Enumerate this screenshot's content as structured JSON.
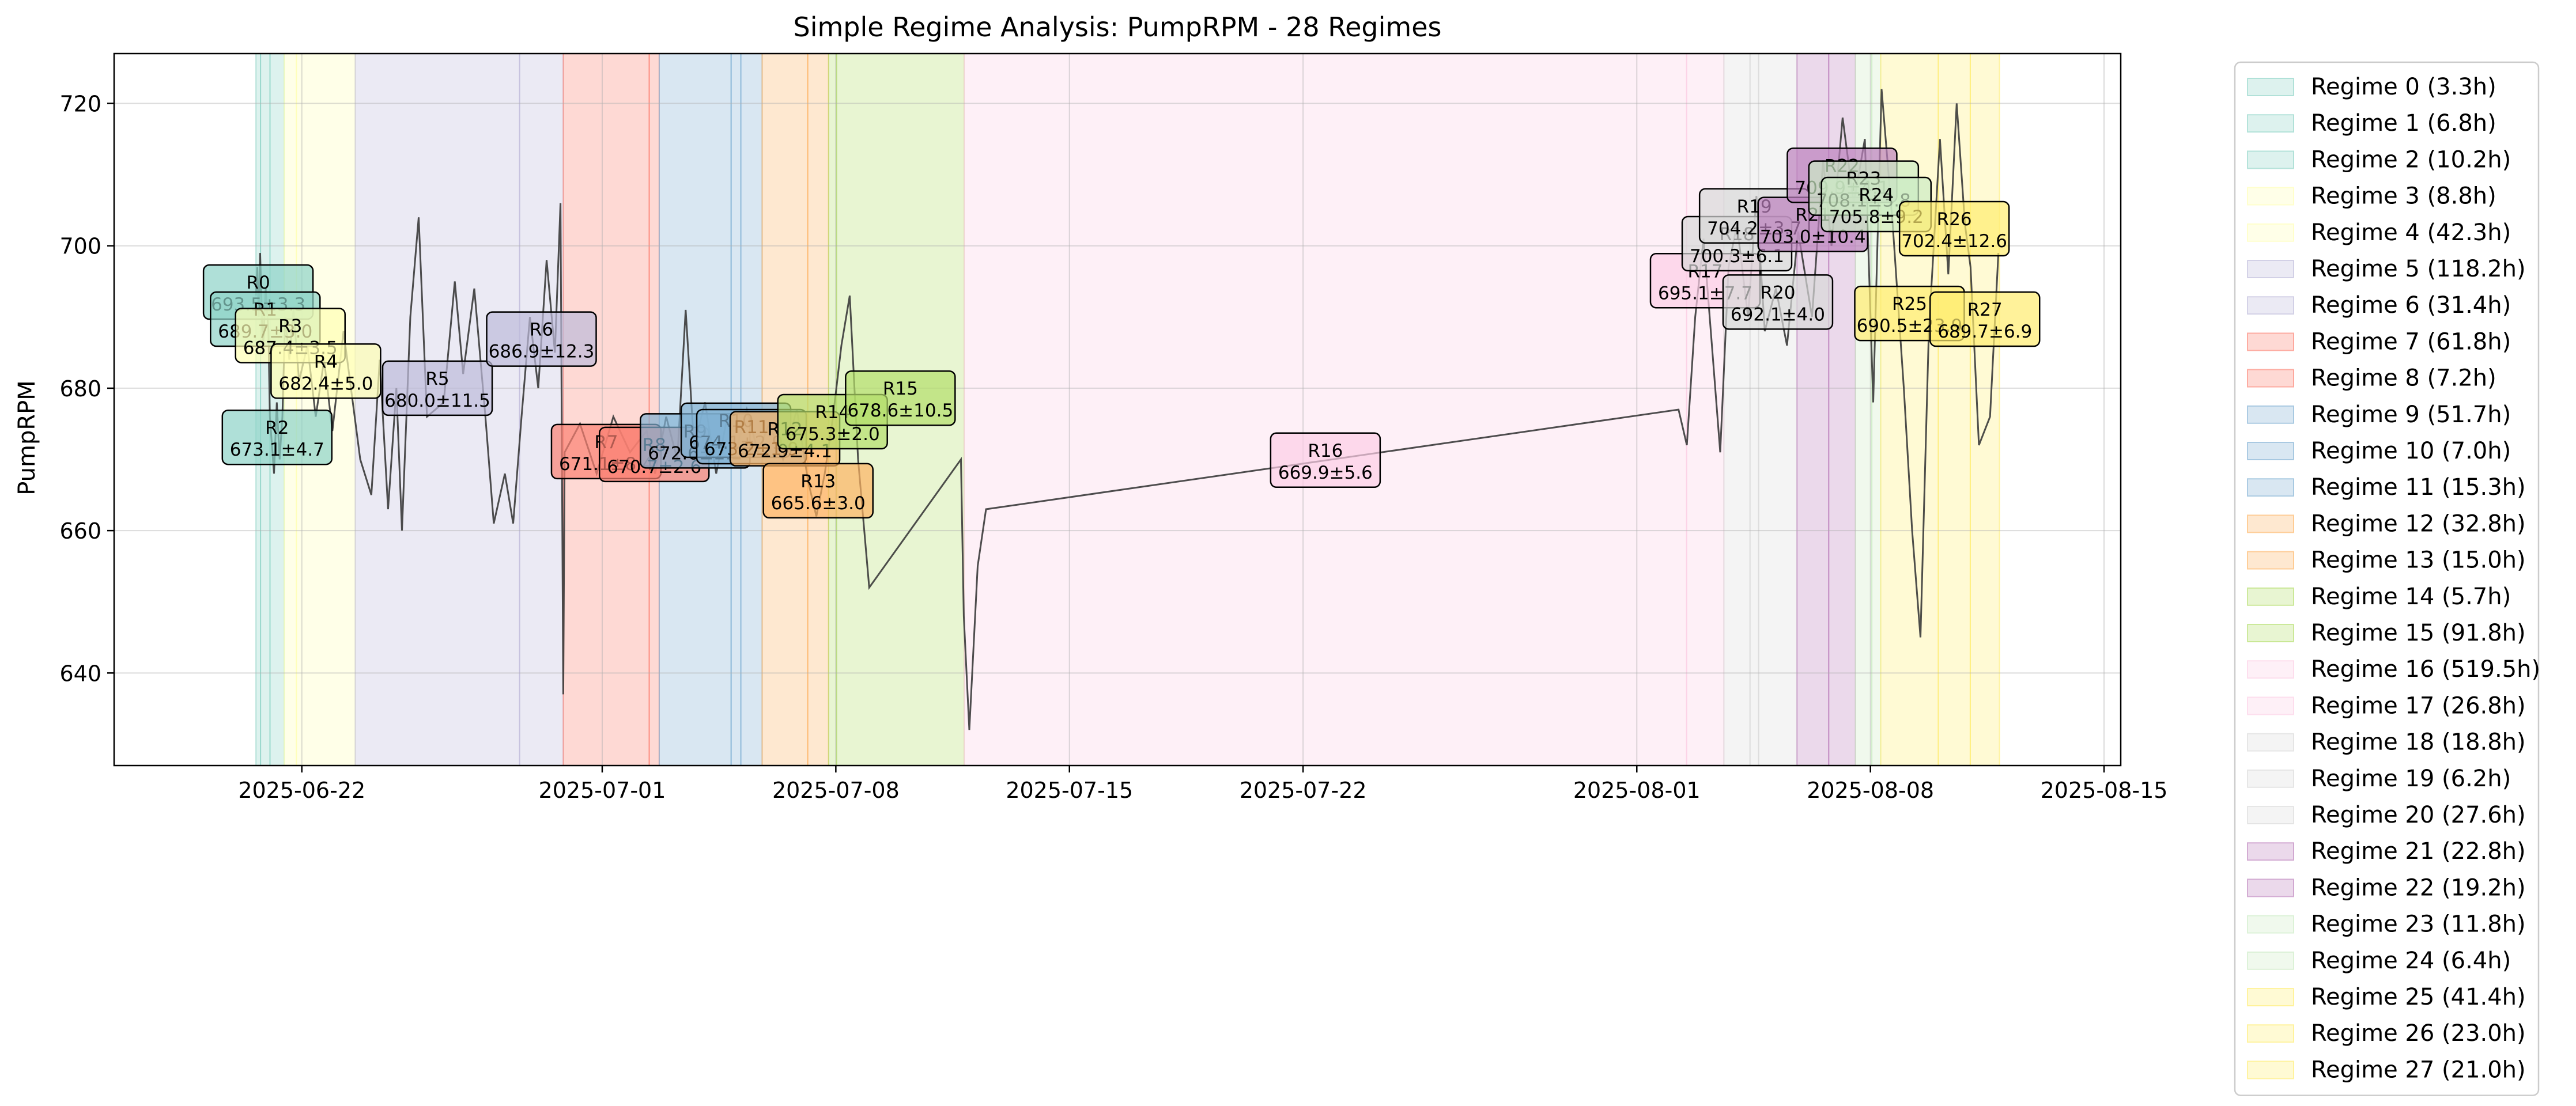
{
  "chart_data": {
    "type": "line",
    "title": "Simple Regime Analysis: PumpRPM - 28 Regimes",
    "xlabel": "",
    "ylabel": "PumpRPM",
    "x_axis_type": "date",
    "xlim": [
      "2025-06-16T09:00",
      "2025-08-15T12:00"
    ],
    "ylim": [
      627,
      727
    ],
    "grid": true,
    "legend_placement": "outside-right",
    "x_ticks": [
      "2025-06-22",
      "2025-07-01",
      "2025-07-08",
      "2025-07-15",
      "2025-07-22",
      "2025-08-01",
      "2025-08-08",
      "2025-08-15"
    ],
    "y_ticks": [
      640,
      660,
      680,
      700,
      720
    ],
    "line_color": "#3a3a3a",
    "palette": [
      "#8dd3c7",
      "#ffffb3",
      "#bebada",
      "#fb8072",
      "#80b1d3",
      "#fdb462",
      "#b3de69",
      "#fccde5",
      "#d9d9d9",
      "#bc80bd",
      "#ccebc5",
      "#ffed6f"
    ],
    "regimes": [
      {
        "legend": "Regime 0 (3.3h)",
        "label": "R0",
        "stats": "693.5±3.3",
        "start": "2025-06-20T15:00",
        "end": "2025-06-20T18:18",
        "mean": 693.5,
        "color": "#8dd3c7"
      },
      {
        "legend": "Regime 1 (6.8h)",
        "label": "R1",
        "stats": "689.7±3.0",
        "start": "2025-06-20T18:18",
        "end": "2025-06-21T01:06",
        "mean": 689.7,
        "color": "#8dd3c7"
      },
      {
        "legend": "Regime 2 (10.2h)",
        "label": "R2",
        "stats": "673.1±4.7",
        "start": "2025-06-21T01:06",
        "end": "2025-06-21T11:18",
        "mean": 673.1,
        "color": "#8dd3c7"
      },
      {
        "legend": "Regime 3 (8.8h)",
        "label": "R3",
        "stats": "687.4±3.5",
        "start": "2025-06-21T11:18",
        "end": "2025-06-21T20:06",
        "mean": 687.4,
        "color": "#ffffb3"
      },
      {
        "legend": "Regime 4 (42.3h)",
        "label": "R4",
        "stats": "682.4±5.0",
        "start": "2025-06-21T20:06",
        "end": "2025-06-23T14:24",
        "mean": 682.4,
        "color": "#ffffb3"
      },
      {
        "legend": "Regime 5 (118.2h)",
        "label": "R5",
        "stats": "680.0±11.5",
        "start": "2025-06-23T14:24",
        "end": "2025-06-28T12:36",
        "mean": 680.0,
        "color": "#bebada"
      },
      {
        "legend": "Regime 6 (31.4h)",
        "label": "R6",
        "stats": "686.9±12.3",
        "start": "2025-06-28T12:36",
        "end": "2025-06-29T20:00",
        "mean": 686.9,
        "color": "#bebada"
      },
      {
        "legend": "Regime 7 (61.8h)",
        "label": "R7",
        "stats": "671.1±8.4",
        "start": "2025-06-29T20:00",
        "end": "2025-07-02T09:48",
        "mean": 671.1,
        "color": "#fb8072"
      },
      {
        "legend": "Regime 8 (7.2h)",
        "label": "R8",
        "stats": "670.7±2.6",
        "start": "2025-07-02T09:48",
        "end": "2025-07-02T17:00",
        "mean": 670.7,
        "color": "#fb8072"
      },
      {
        "legend": "Regime 9 (51.7h)",
        "label": "R9",
        "stats": "672.6±2.2",
        "start": "2025-07-02T17:00",
        "end": "2025-07-04T20:42",
        "mean": 672.6,
        "color": "#80b1d3"
      },
      {
        "legend": "Regime 10 (7.0h)",
        "label": "R10",
        "stats": "674.1±2.9",
        "start": "2025-07-04T20:42",
        "end": "2025-07-05T03:42",
        "mean": 674.1,
        "color": "#80b1d3"
      },
      {
        "legend": "Regime 11 (15.3h)",
        "label": "R11",
        "stats": "673.2±1.9",
        "start": "2025-07-05T03:42",
        "end": "2025-07-05T19:00",
        "mean": 673.2,
        "color": "#80b1d3"
      },
      {
        "legend": "Regime 12 (32.8h)",
        "label": "R12",
        "stats": "672.9±4.1",
        "start": "2025-07-05T19:00",
        "end": "2025-07-07T03:48",
        "mean": 672.9,
        "color": "#fdb462"
      },
      {
        "legend": "Regime 13 (15.0h)",
        "label": "R13",
        "stats": "665.6±3.0",
        "start": "2025-07-07T03:48",
        "end": "2025-07-07T18:48",
        "mean": 665.6,
        "color": "#fdb462"
      },
      {
        "legend": "Regime 14 (5.7h)",
        "label": "R14",
        "stats": "675.3±2.0",
        "start": "2025-07-07T18:48",
        "end": "2025-07-08T00:30",
        "mean": 675.3,
        "color": "#b3de69"
      },
      {
        "legend": "Regime 15 (91.8h)",
        "label": "R15",
        "stats": "678.6±10.5",
        "start": "2025-07-08T00:30",
        "end": "2025-07-11T20:18",
        "mean": 678.6,
        "color": "#b3de69"
      },
      {
        "legend": "Regime 16 (519.5h)",
        "label": "R16",
        "stats": "669.9±5.6",
        "start": "2025-07-11T20:18",
        "end": "2025-08-02T11:48",
        "mean": 669.9,
        "color": "#fccde5"
      },
      {
        "legend": "Regime 17 (26.8h)",
        "label": "R17",
        "stats": "695.1±7.7",
        "start": "2025-08-02T11:48",
        "end": "2025-08-03T14:36",
        "mean": 695.1,
        "color": "#fccde5"
      },
      {
        "legend": "Regime 18 (18.8h)",
        "label": "R18",
        "stats": "700.3±6.1",
        "start": "2025-08-03T14:36",
        "end": "2025-08-04T09:24",
        "mean": 700.3,
        "color": "#d9d9d9"
      },
      {
        "legend": "Regime 19 (6.2h)",
        "label": "R19",
        "stats": "704.2±3.7",
        "start": "2025-08-04T09:24",
        "end": "2025-08-04T15:36",
        "mean": 704.2,
        "color": "#d9d9d9"
      },
      {
        "legend": "Regime 20 (27.6h)",
        "label": "R20",
        "stats": "692.1±4.0",
        "start": "2025-08-04T15:36",
        "end": "2025-08-05T19:12",
        "mean": 692.1,
        "color": "#d9d9d9"
      },
      {
        "legend": "Regime 21 (22.8h)",
        "label": "R21",
        "stats": "703.0±10.4",
        "start": "2025-08-05T19:12",
        "end": "2025-08-06T18:00",
        "mean": 703.0,
        "color": "#bc80bd"
      },
      {
        "legend": "Regime 22 (19.2h)",
        "label": "R22",
        "stats": "709.9±4.1",
        "start": "2025-08-06T18:00",
        "end": "2025-08-07T13:12",
        "mean": 709.9,
        "color": "#bc80bd"
      },
      {
        "legend": "Regime 23 (11.8h)",
        "label": "R23",
        "stats": "708.1±3.8",
        "start": "2025-08-07T13:12",
        "end": "2025-08-08T01:00",
        "mean": 708.1,
        "color": "#ccebc5"
      },
      {
        "legend": "Regime 24 (6.4h)",
        "label": "R24",
        "stats": "705.8±9.2",
        "start": "2025-08-08T01:00",
        "end": "2025-08-08T07:24",
        "mean": 705.8,
        "color": "#ccebc5"
      },
      {
        "legend": "Regime 25 (41.4h)",
        "label": "R25",
        "stats": "690.5±23.9",
        "start": "2025-08-08T07:24",
        "end": "2025-08-10T00:48",
        "mean": 690.5,
        "color": "#ffed6f"
      },
      {
        "legend": "Regime 26 (23.0h)",
        "label": "R26",
        "stats": "702.4±12.6",
        "start": "2025-08-10T00:48",
        "end": "2025-08-10T23:48",
        "mean": 702.4,
        "color": "#ffed6f"
      },
      {
        "legend": "Regime 27 (21.0h)",
        "label": "R27",
        "stats": "689.7±6.9",
        "start": "2025-08-10T23:48",
        "end": "2025-08-11T20:48",
        "mean": 689.7,
        "color": "#ffed6f"
      }
    ],
    "series": [
      {
        "values": [
          {
            "x": "2025-06-20T15:00",
            "y": 693
          },
          {
            "x": "2025-06-20T16:00",
            "y": 697
          },
          {
            "x": "2025-06-20T17:00",
            "y": 690
          },
          {
            "x": "2025-06-20T18:00",
            "y": 699
          },
          {
            "x": "2025-06-20T20:00",
            "y": 685
          },
          {
            "x": "2025-06-20T22:00",
            "y": 694
          },
          {
            "x": "2025-06-21T00:00",
            "y": 688
          },
          {
            "x": "2025-06-21T01:00",
            "y": 676
          },
          {
            "x": "2025-06-21T04:00",
            "y": 668
          },
          {
            "x": "2025-06-21T06:00",
            "y": 678
          },
          {
            "x": "2025-06-21T08:00",
            "y": 670
          },
          {
            "x": "2025-06-21T10:00",
            "y": 676
          },
          {
            "x": "2025-06-21T12:00",
            "y": 690
          },
          {
            "x": "2025-06-21T15:00",
            "y": 684
          },
          {
            "x": "2025-06-21T18:00",
            "y": 691
          },
          {
            "x": "2025-06-21T22:00",
            "y": 681
          },
          {
            "x": "2025-06-22T04:00",
            "y": 686
          },
          {
            "x": "2025-06-22T10:00",
            "y": 676
          },
          {
            "x": "2025-06-22T16:00",
            "y": 684
          },
          {
            "x": "2025-06-22T22:00",
            "y": 674
          },
          {
            "x": "2025-06-23T06:00",
            "y": 688
          },
          {
            "x": "2025-06-23T12:00",
            "y": 679
          },
          {
            "x": "2025-06-23T18:00",
            "y": 670
          },
          {
            "x": "2025-06-24T02:00",
            "y": 665
          },
          {
            "x": "2025-06-24T08:00",
            "y": 684
          },
          {
            "x": "2025-06-24T14:00",
            "y": 663
          },
          {
            "x": "2025-06-24T20:00",
            "y": 680
          },
          {
            "x": "2025-06-25T00:00",
            "y": 660
          },
          {
            "x": "2025-06-25T06:00",
            "y": 690
          },
          {
            "x": "2025-06-25T12:00",
            "y": 704
          },
          {
            "x": "2025-06-25T18:00",
            "y": 676
          },
          {
            "x": "2025-06-26T06:00",
            "y": 678
          },
          {
            "x": "2025-06-26T14:00",
            "y": 695
          },
          {
            "x": "2025-06-26T20:00",
            "y": 682
          },
          {
            "x": "2025-06-27T04:00",
            "y": 694
          },
          {
            "x": "2025-06-27T12:00",
            "y": 676
          },
          {
            "x": "2025-06-27T18:00",
            "y": 661
          },
          {
            "x": "2025-06-28T02:00",
            "y": 668
          },
          {
            "x": "2025-06-28T08:00",
            "y": 661
          },
          {
            "x": "2025-06-28T14:00",
            "y": 676
          },
          {
            "x": "2025-06-28T20:00",
            "y": 690
          },
          {
            "x": "2025-06-29T02:00",
            "y": 680
          },
          {
            "x": "2025-06-29T08:00",
            "y": 698
          },
          {
            "x": "2025-06-29T14:00",
            "y": 685
          },
          {
            "x": "2025-06-29T18:00",
            "y": 706
          },
          {
            "x": "2025-06-29T20:00",
            "y": 637
          },
          {
            "x": "2025-06-29T21:00",
            "y": 671
          },
          {
            "x": "2025-06-30T08:00",
            "y": 675
          },
          {
            "x": "2025-06-30T20:00",
            "y": 668
          },
          {
            "x": "2025-07-01T08:00",
            "y": 676
          },
          {
            "x": "2025-07-01T20:00",
            "y": 671
          },
          {
            "x": "2025-07-02T08:00",
            "y": 674
          },
          {
            "x": "2025-07-02T14:00",
            "y": 668
          },
          {
            "x": "2025-07-02T22:00",
            "y": 676
          },
          {
            "x": "2025-07-03T06:00",
            "y": 670
          },
          {
            "x": "2025-07-03T12:00",
            "y": 691
          },
          {
            "x": "2025-07-03T18:00",
            "y": 672
          },
          {
            "x": "2025-07-04T02:00",
            "y": 678
          },
          {
            "x": "2025-07-04T10:00",
            "y": 668
          },
          {
            "x": "2025-07-04T18:00",
            "y": 676
          },
          {
            "x": "2025-07-05T00:00",
            "y": 671
          },
          {
            "x": "2025-07-05T08:00",
            "y": 677
          },
          {
            "x": "2025-07-05T16:00",
            "y": 671
          },
          {
            "x": "2025-07-06T00:00",
            "y": 675
          },
          {
            "x": "2025-07-06T10:00",
            "y": 670
          },
          {
            "x": "2025-07-06T20:00",
            "y": 677
          },
          {
            "x": "2025-07-07T04:00",
            "y": 667
          },
          {
            "x": "2025-07-07T10:00",
            "y": 662
          },
          {
            "x": "2025-07-07T16:00",
            "y": 668
          },
          {
            "x": "2025-07-07T22:00",
            "y": 676
          },
          {
            "x": "2025-07-08T04:00",
            "y": 686
          },
          {
            "x": "2025-07-08T10:00",
            "y": 693
          },
          {
            "x": "2025-07-08T16:00",
            "y": 670
          },
          {
            "x": "2025-07-09T00:00",
            "y": 652
          },
          {
            "x": "2025-07-11T18:00",
            "y": 670
          },
          {
            "x": "2025-07-11T20:00",
            "y": 648
          },
          {
            "x": "2025-07-12T00:00",
            "y": 632
          },
          {
            "x": "2025-07-12T06:00",
            "y": 655
          },
          {
            "x": "2025-07-12T12:00",
            "y": 663
          },
          {
            "x": "2025-08-02T06:00",
            "y": 677
          },
          {
            "x": "2025-08-02T12:00",
            "y": 672
          },
          {
            "x": "2025-08-02T18:00",
            "y": 690
          },
          {
            "x": "2025-08-03T00:00",
            "y": 701
          },
          {
            "x": "2025-08-03T06:00",
            "y": 686
          },
          {
            "x": "2025-08-03T12:00",
            "y": 671
          },
          {
            "x": "2025-08-03T18:00",
            "y": 697
          },
          {
            "x": "2025-08-04T00:00",
            "y": 703
          },
          {
            "x": "2025-08-04T08:00",
            "y": 690
          },
          {
            "x": "2025-08-04T14:00",
            "y": 707
          },
          {
            "x": "2025-08-04T20:00",
            "y": 688
          },
          {
            "x": "2025-08-05T04:00",
            "y": 694
          },
          {
            "x": "2025-08-05T12:00",
            "y": 686
          },
          {
            "x": "2025-08-05T20:00",
            "y": 702
          },
          {
            "x": "2025-08-06T06:00",
            "y": 690
          },
          {
            "x": "2025-08-06T14:00",
            "y": 712
          },
          {
            "x": "2025-08-06T20:00",
            "y": 700
          },
          {
            "x": "2025-08-07T04:00",
            "y": 718
          },
          {
            "x": "2025-08-07T12:00",
            "y": 706
          },
          {
            "x": "2025-08-07T20:00",
            "y": 715
          },
          {
            "x": "2025-08-08T02:00",
            "y": 678
          },
          {
            "x": "2025-08-08T08:00",
            "y": 722
          },
          {
            "x": "2025-08-08T16:00",
            "y": 703
          },
          {
            "x": "2025-08-09T00:00",
            "y": 680
          },
          {
            "x": "2025-08-09T06:00",
            "y": 660
          },
          {
            "x": "2025-08-09T12:00",
            "y": 645
          },
          {
            "x": "2025-08-09T18:00",
            "y": 688
          },
          {
            "x": "2025-08-10T02:00",
            "y": 715
          },
          {
            "x": "2025-08-10T08:00",
            "y": 696
          },
          {
            "x": "2025-08-10T14:00",
            "y": 720
          },
          {
            "x": "2025-08-10T20:00",
            "y": 703
          },
          {
            "x": "2025-08-11T00:00",
            "y": 697
          },
          {
            "x": "2025-08-11T06:00",
            "y": 672
          },
          {
            "x": "2025-08-11T14:00",
            "y": 676
          },
          {
            "x": "2025-08-11T20:00",
            "y": 699
          }
        ]
      }
    ]
  }
}
